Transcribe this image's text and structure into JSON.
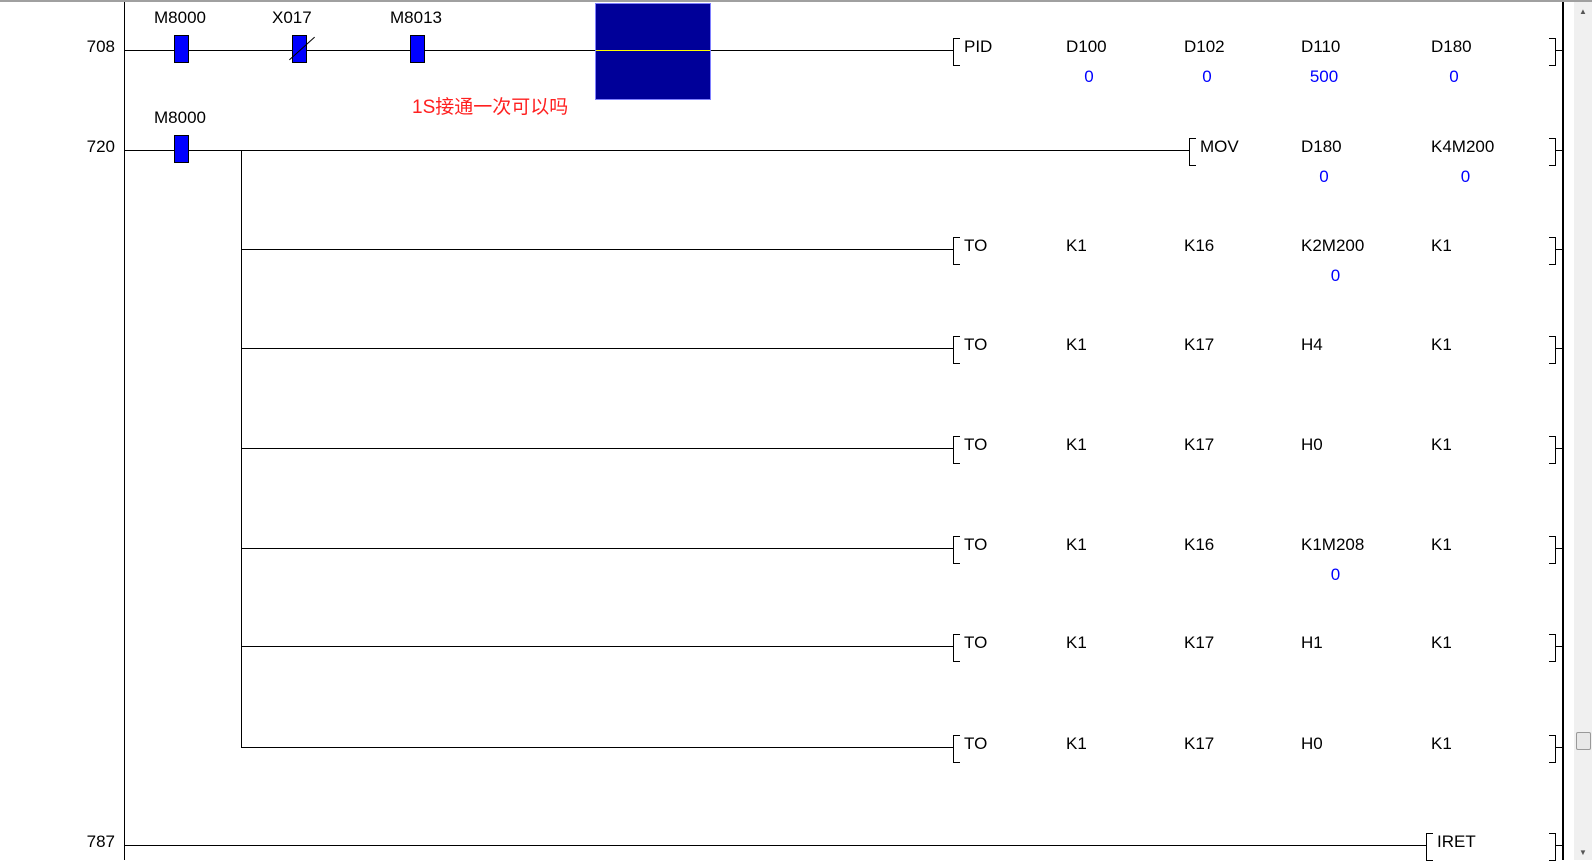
{
  "colors": {
    "contact": "#0000ff",
    "selection": "#000099",
    "value": "#0000ff",
    "comment": "#ff2020"
  },
  "rows": [
    {
      "step": "708",
      "contacts": [
        {
          "label": "M8000",
          "type": "NO"
        },
        {
          "label": "X017",
          "type": "NC"
        },
        {
          "label": "M8013",
          "type": "NO"
        }
      ],
      "instruction": {
        "name": "PID",
        "operands": [
          {
            "label": "D100",
            "value": "0"
          },
          {
            "label": "D102",
            "value": "0"
          },
          {
            "label": "D110",
            "value": "500"
          },
          {
            "label": "D180",
            "value": "0"
          }
        ]
      }
    },
    {
      "step": "720",
      "contacts": [
        {
          "label": "M8000",
          "type": "NO"
        }
      ],
      "instruction": {
        "name": "MOV",
        "operands": [
          {
            "label": "D180",
            "value": "0"
          },
          {
            "label": "K4M200",
            "value": "0"
          }
        ]
      },
      "branches": [
        {
          "name": "TO",
          "operands": [
            {
              "label": "K1"
            },
            {
              "label": "K16"
            },
            {
              "label": "K2M200",
              "value": "0"
            },
            {
              "label": "K1"
            }
          ]
        },
        {
          "name": "TO",
          "operands": [
            {
              "label": "K1"
            },
            {
              "label": "K17"
            },
            {
              "label": "H4"
            },
            {
              "label": "K1"
            }
          ]
        },
        {
          "name": "TO",
          "operands": [
            {
              "label": "K1"
            },
            {
              "label": "K17"
            },
            {
              "label": "H0"
            },
            {
              "label": "K1"
            }
          ]
        },
        {
          "name": "TO",
          "operands": [
            {
              "label": "K1"
            },
            {
              "label": "K16"
            },
            {
              "label": "K1M208",
              "value": "0"
            },
            {
              "label": "K1"
            }
          ]
        },
        {
          "name": "TO",
          "operands": [
            {
              "label": "K1"
            },
            {
              "label": "K17"
            },
            {
              "label": "H1"
            },
            {
              "label": "K1"
            }
          ]
        },
        {
          "name": "TO",
          "operands": [
            {
              "label": "K1"
            },
            {
              "label": "K17"
            },
            {
              "label": "H0"
            },
            {
              "label": "K1"
            }
          ]
        }
      ]
    },
    {
      "step": "787",
      "instruction": {
        "name": "IRET"
      }
    }
  ],
  "comment": "1S接通一次可以吗"
}
